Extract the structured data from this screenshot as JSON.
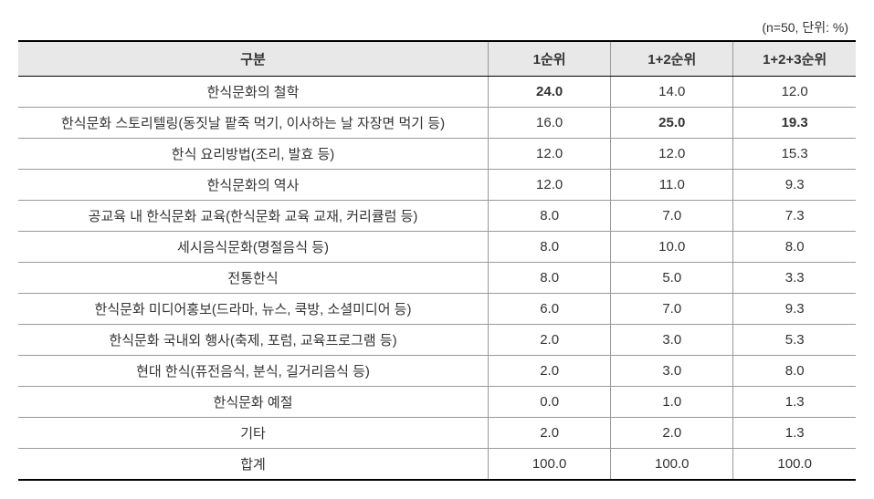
{
  "table": {
    "caption": "(n=50, 단위: %)",
    "columns": [
      "구분",
      "1순위",
      "1+2순위",
      "1+2+3순위"
    ],
    "column_widths_pct": [
      56,
      14.6,
      14.6,
      14.6
    ],
    "header_bg": "#e8e8e8",
    "border_color_heavy": "#000000",
    "border_color_light": "#999999",
    "font_size": 15,
    "caption_font_size": 14,
    "rows": [
      {
        "label": "한식문화의 철학",
        "v1": "24.0",
        "v2": "14.0",
        "v3": "12.0",
        "bold": [
          true,
          false,
          false
        ]
      },
      {
        "label": "한식문화 스토리텔링(동짓날 팥죽 먹기, 이사하는 날 자장면 먹기 등)",
        "v1": "16.0",
        "v2": "25.0",
        "v3": "19.3",
        "bold": [
          false,
          true,
          true
        ]
      },
      {
        "label": "한식 요리방법(조리, 발효 등)",
        "v1": "12.0",
        "v2": "12.0",
        "v3": "15.3",
        "bold": [
          false,
          false,
          false
        ]
      },
      {
        "label": "한식문화의 역사",
        "v1": "12.0",
        "v2": "11.0",
        "v3": "9.3",
        "bold": [
          false,
          false,
          false
        ]
      },
      {
        "label": "공교육 내 한식문화 교육(한식문화 교육 교재, 커리큘럼 등)",
        "v1": "8.0",
        "v2": "7.0",
        "v3": "7.3",
        "bold": [
          false,
          false,
          false
        ]
      },
      {
        "label": "세시음식문화(명절음식 등)",
        "v1": "8.0",
        "v2": "10.0",
        "v3": "8.0",
        "bold": [
          false,
          false,
          false
        ]
      },
      {
        "label": "전통한식",
        "v1": "8.0",
        "v2": "5.0",
        "v3": "3.3",
        "bold": [
          false,
          false,
          false
        ]
      },
      {
        "label": "한식문화 미디어홍보(드라마, 뉴스, 쿡방, 소셜미디어 등)",
        "v1": "6.0",
        "v2": "7.0",
        "v3": "9.3",
        "bold": [
          false,
          false,
          false
        ]
      },
      {
        "label": "한식문화 국내외 행사(축제, 포럼, 교육프로그램 등)",
        "v1": "2.0",
        "v2": "3.0",
        "v3": "5.3",
        "bold": [
          false,
          false,
          false
        ]
      },
      {
        "label": "현대 한식(퓨전음식, 분식, 길거리음식 등)",
        "v1": "2.0",
        "v2": "3.0",
        "v3": "8.0",
        "bold": [
          false,
          false,
          false
        ]
      },
      {
        "label": "한식문화 예절",
        "v1": "0.0",
        "v2": "1.0",
        "v3": "1.3",
        "bold": [
          false,
          false,
          false
        ]
      },
      {
        "label": "기타",
        "v1": "2.0",
        "v2": "2.0",
        "v3": "1.3",
        "bold": [
          false,
          false,
          false
        ]
      },
      {
        "label": "합계",
        "v1": "100.0",
        "v2": "100.0",
        "v3": "100.0",
        "bold": [
          false,
          false,
          false
        ]
      }
    ]
  }
}
